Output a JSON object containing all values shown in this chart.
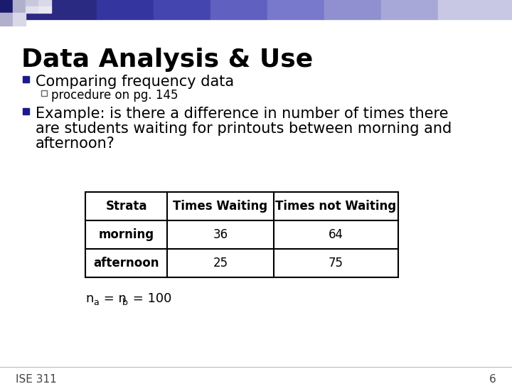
{
  "title": "Data Analysis & Use",
  "bullet1": "Comparing frequency data",
  "sub_bullet1": "procedure on pg. 145",
  "bullet2_line1": "Example: is there a difference in number of times there",
  "bullet2_line2": "are students waiting for printouts between morning and",
  "bullet2_line3": "afternoon?",
  "table_headers": [
    "Strata",
    "Times Waiting",
    "Times not Waiting"
  ],
  "table_rows": [
    [
      "morning",
      "36",
      "64"
    ],
    [
      "afternoon",
      "25",
      "75"
    ]
  ],
  "slide_number": "6",
  "course": "ISE 311",
  "slide_bg": "#ffffff",
  "title_color": "#000000",
  "accent_color": "#1a1a8c",
  "table_border_color": "#000000",
  "header_gradient": [
    [
      0,
      0,
      18,
      18,
      "#1a1a6e"
    ],
    [
      18,
      0,
      18,
      18,
      "#b0b0cc"
    ],
    [
      0,
      18,
      18,
      18,
      "#b0b0cc"
    ],
    [
      18,
      18,
      18,
      18,
      "#d8d8e8"
    ],
    [
      36,
      0,
      18,
      9,
      "#c8c8dc"
    ],
    [
      36,
      9,
      18,
      9,
      "#e0e0ee"
    ],
    [
      54,
      0,
      18,
      9,
      "#d8d8e8"
    ],
    [
      54,
      9,
      18,
      9,
      "#e8e8f2"
    ]
  ],
  "grad_stops": [
    [
      36,
      0,
      100,
      27,
      "#2a2a82"
    ],
    [
      136,
      0,
      80,
      27,
      "#3535a0"
    ],
    [
      216,
      0,
      80,
      27,
      "#4545b0"
    ],
    [
      296,
      0,
      80,
      27,
      "#6060c0"
    ],
    [
      376,
      0,
      80,
      27,
      "#7878cc"
    ],
    [
      456,
      0,
      80,
      27,
      "#9090d0"
    ],
    [
      536,
      0,
      80,
      27,
      "#a8a8d8"
    ],
    [
      616,
      0,
      104,
      27,
      "#c8c8e4"
    ]
  ]
}
